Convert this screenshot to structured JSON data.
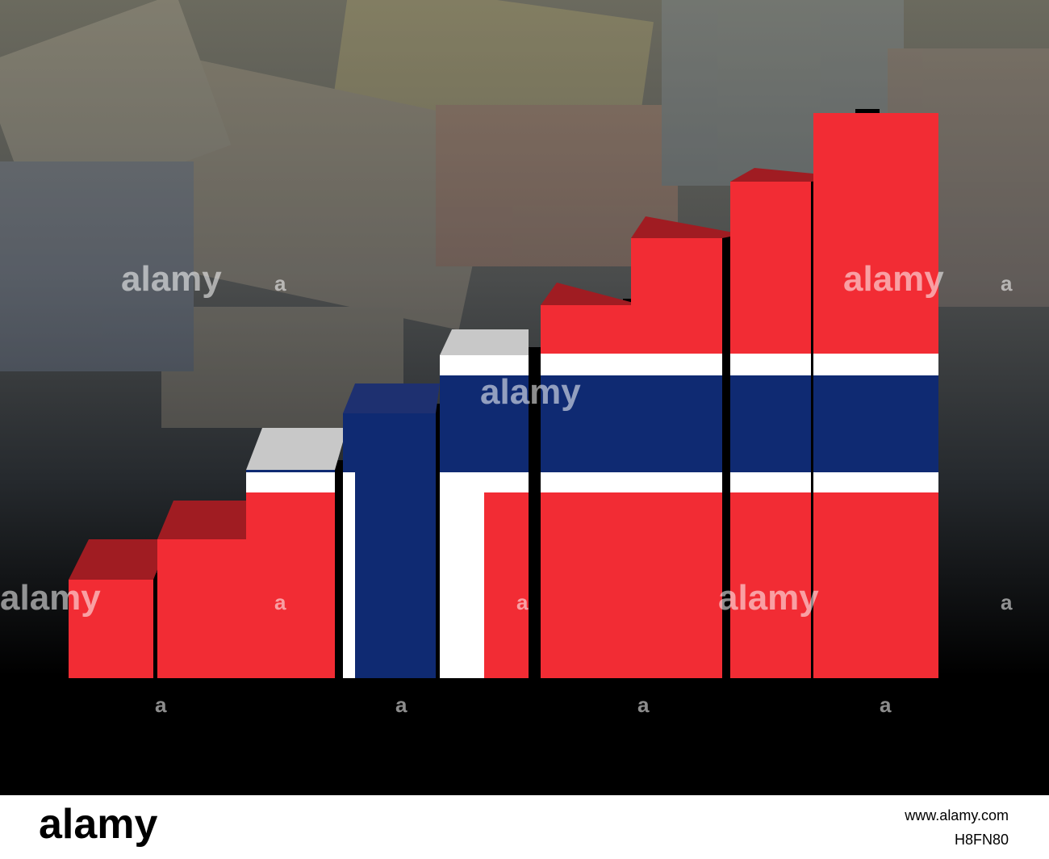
{
  "watermark": {
    "word": "alamy",
    "mark": "a"
  },
  "footer": {
    "logo": "alamy",
    "url": "www.alamy.com",
    "image_id": "H8FN80"
  }
}
